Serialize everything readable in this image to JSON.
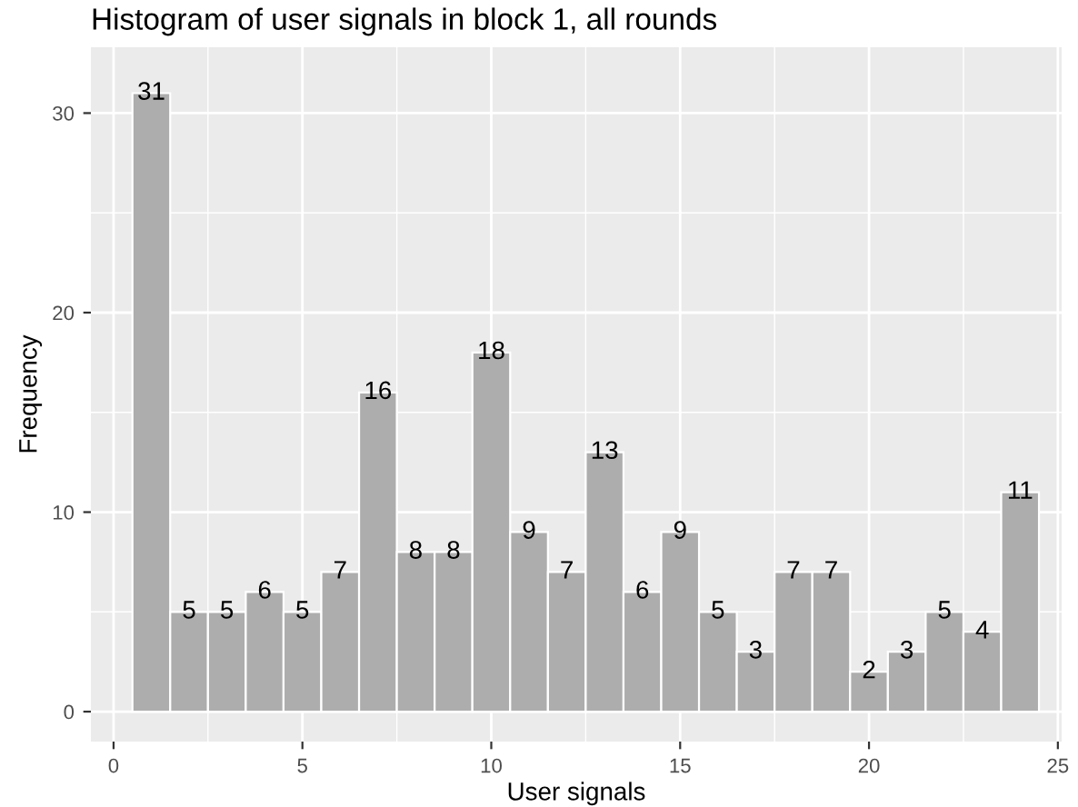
{
  "chart_data": {
    "type": "histogram",
    "title": "Histogram of user signals in block 1, all rounds",
    "xlabel": "User signals",
    "ylabel": "Frequency",
    "bins": [
      0.5,
      1.5,
      2.5,
      3.5,
      4.5,
      5.5,
      6.5,
      7.5,
      8.5,
      9.5,
      10.5,
      11.5,
      12.5,
      13.5,
      14.5,
      15.5,
      16.5,
      17.5,
      18.5,
      19.5,
      20.5,
      21.5,
      22.5,
      23.5,
      24.5
    ],
    "values": [
      31,
      5,
      5,
      6,
      5,
      7,
      16,
      8,
      8,
      18,
      9,
      7,
      13,
      6,
      9,
      5,
      3,
      7,
      7,
      2,
      3,
      5,
      4,
      11
    ],
    "color": "#adadad",
    "data_labels": true,
    "grid": true,
    "xlim": [
      -0.6,
      25.1
    ],
    "xticks": [
      0,
      5,
      10,
      15,
      20,
      25
    ],
    "ylim": [
      -1.5,
      33.3
    ],
    "yticks": [
      0,
      10,
      20,
      30
    ]
  }
}
